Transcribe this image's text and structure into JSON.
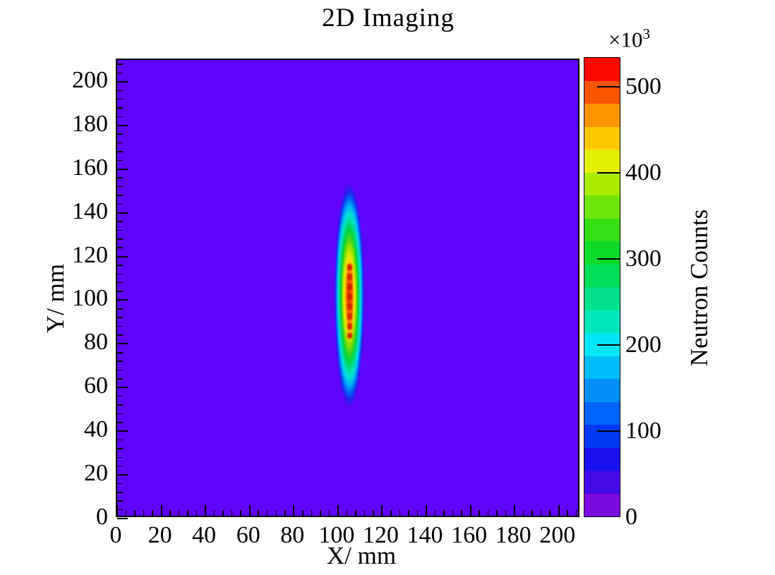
{
  "title": "2D Imaging",
  "chart_data": {
    "type": "heatmap",
    "title": "2D Imaging",
    "xlabel": "X/ mm",
    "ylabel": "Y/ mm",
    "colorbar_label": "Neutron Counts",
    "scale_factor": {
      "base": "×10",
      "exponent": "3"
    },
    "xlim": [
      0,
      210
    ],
    "ylim": [
      0,
      210
    ],
    "x_major_ticks": [
      0,
      20,
      40,
      60,
      80,
      100,
      120,
      140,
      160,
      180,
      200
    ],
    "y_major_ticks": [
      0,
      20,
      40,
      60,
      80,
      100,
      120,
      140,
      160,
      180,
      200
    ],
    "minor_tick_step_mm": 4,
    "grid": false,
    "background_value_color": "#6004fa",
    "colorbar": {
      "ticks": [
        0,
        100,
        200,
        300,
        400,
        500
      ],
      "value_max": 534,
      "units": "counts × 10^3",
      "palette_bottom_to_top": [
        "#7d0be0",
        "#430ae8",
        "#1912ee",
        "#0038f4",
        "#0064f8",
        "#0090f8",
        "#00bcf8",
        "#00e6f4",
        "#00e6bc",
        "#00e28c",
        "#00de5a",
        "#0eda2a",
        "#36e016",
        "#6ee60a",
        "#aaec00",
        "#e4ee00",
        "#fdc800",
        "#fc9400",
        "#f95400",
        "#fa0a00"
      ]
    },
    "feature": {
      "shape": "narrow vertical elliptical beam spot (Gaussian-like)",
      "center_x_mm": 105,
      "center_y_mm": 102,
      "extent_x_mm": [
        101,
        111
      ],
      "extent_y_mm": [
        53,
        152
      ],
      "core_x_mm": 105.5,
      "core_y_range_mm": [
        83,
        116
      ],
      "peak_value_approx_10e3": 530,
      "background_value_approx_10e3": 10
    }
  }
}
